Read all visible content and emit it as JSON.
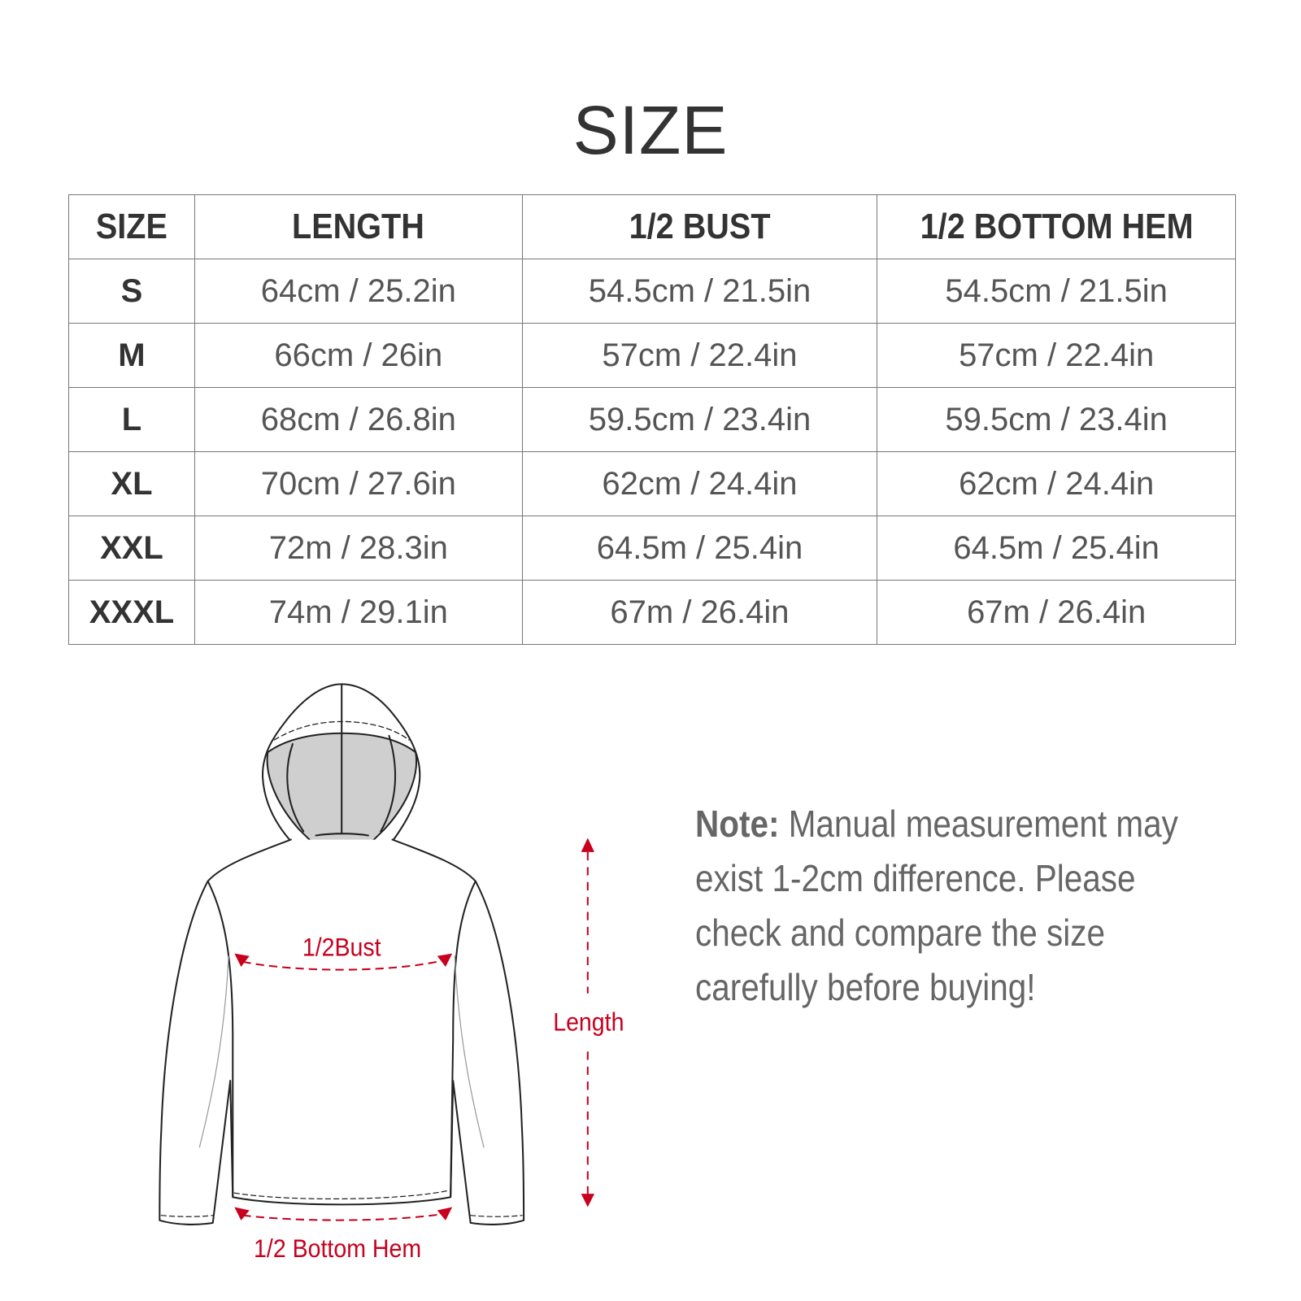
{
  "title": "SIZE",
  "table": {
    "headers": [
      "SIZE",
      "LENGTH",
      "1/2 BUST",
      "1/2 BOTTOM HEM"
    ],
    "rows": [
      [
        "S",
        "64cm / 25.2in",
        "54.5cm / 21.5in",
        "54.5cm / 21.5in"
      ],
      [
        "M",
        "66cm / 26in",
        "57cm / 22.4in",
        "57cm / 22.4in"
      ],
      [
        "L",
        "68cm / 26.8in",
        "59.5cm / 23.4in",
        "59.5cm / 23.4in"
      ],
      [
        "XL",
        "70cm / 27.6in",
        "62cm / 24.4in",
        "62cm / 24.4in"
      ],
      [
        "XXL",
        "72m / 28.3in",
        "64.5m / 25.4in",
        "64.5m / 25.4in"
      ],
      [
        "XXXL",
        "74m / 29.1in",
        "67m / 26.4in",
        "67m / 26.4in"
      ]
    ]
  },
  "diagram": {
    "bust_label": "1/2Bust",
    "length_label": "Length",
    "hem_label": "1/2 Bottom Hem",
    "accent_color": "#c8001e"
  },
  "note": {
    "label": "Note:",
    "text": " Manual measurement may exist 1-2cm difference. Please check and compare the size carefully before buying!"
  }
}
